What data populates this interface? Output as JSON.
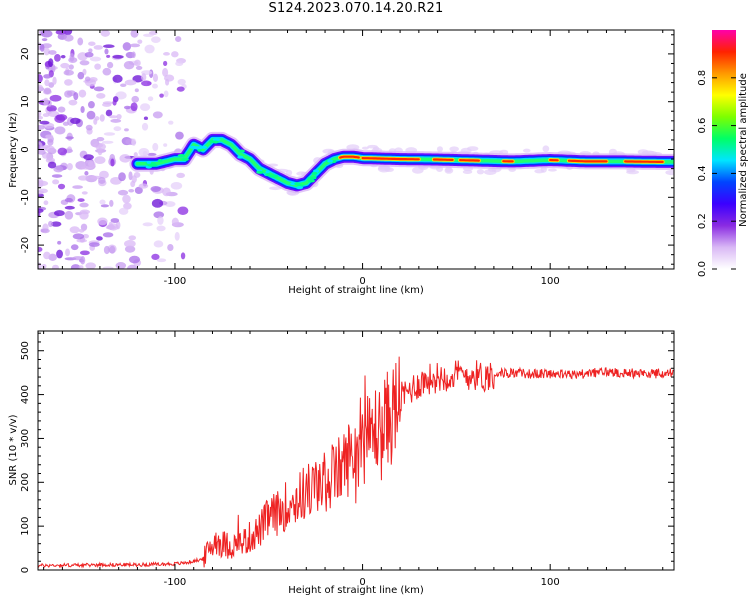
{
  "figure": {
    "title": "S124.2023.070.14.20.R21"
  },
  "chart_data": [
    {
      "type": "heatmap",
      "title": "S124.2023.070.14.20.R21",
      "xlabel": "Height of straight line (km)",
      "ylabel": "Frequency (Hz)",
      "xlim": [
        -173,
        166
      ],
      "ylim": [
        -25,
        25
      ],
      "x_ticks": [
        -100,
        0,
        100
      ],
      "y_ticks": [
        -20,
        -10,
        0,
        10,
        20
      ],
      "colorbar": {
        "label": "Normalized spectral amplitude",
        "range": [
          0,
          1
        ],
        "ticks": [
          0.0,
          0.2,
          0.4,
          0.6,
          0.8
        ],
        "tick_labels": [
          "0.0",
          "0.2",
          "0.4",
          "0.6",
          "0.8"
        ],
        "colormap": [
          "#ffffff",
          "#d9b8f5",
          "#8a2be2",
          "#3b00ff",
          "#0044ff",
          "#00e5ff",
          "#00ff66",
          "#7dff00",
          "#ffff00",
          "#ff9900",
          "#ff2200",
          "#ff00aa"
        ]
      },
      "ridge": {
        "x": [
          -120,
          -110,
          -100,
          -95,
          -90,
          -85,
          -80,
          -75,
          -70,
          -65,
          -60,
          -55,
          -50,
          -45,
          -40,
          -35,
          -30,
          -25,
          -20,
          -15,
          -10,
          -5,
          0,
          20,
          40,
          60,
          80,
          100,
          120,
          140,
          160,
          166
        ],
        "frequency": [
          -3,
          -3,
          -2,
          -2,
          1,
          0,
          2,
          2,
          1,
          -1,
          -2,
          -4,
          -5,
          -6,
          -7,
          -7.5,
          -7,
          -5,
          -3,
          -2,
          -1.5,
          -1.5,
          -1.8,
          -2.0,
          -2.1,
          -2.3,
          -2.5,
          -2.2,
          -2.5,
          -2.5,
          -2.6,
          -2.6
        ]
      }
    },
    {
      "type": "line",
      "xlabel": "Height of straight line (km)",
      "ylabel": "SNR (10 * v/v)",
      "xlim": [
        -173,
        166
      ],
      "ylim": [
        0,
        545
      ],
      "x_ticks": [
        -100,
        0,
        100
      ],
      "y_ticks": [
        0,
        100,
        200,
        300,
        400,
        500
      ],
      "series": [
        {
          "color": "#ee2222",
          "x": [
            -173,
            -160,
            -150,
            -140,
            -130,
            -120,
            -110,
            -100,
            -95,
            -90,
            -85,
            -82,
            -78,
            -75,
            -70,
            -65,
            -60,
            -55,
            -50,
            -45,
            -40,
            -35,
            -30,
            -25,
            -20,
            -15,
            -10,
            -5,
            0,
            5,
            8,
            10,
            12,
            15,
            20,
            25,
            30,
            35,
            40,
            50,
            60,
            65,
            70,
            80,
            90,
            100,
            110,
            120,
            130,
            140,
            150,
            160,
            166
          ],
          "y": [
            10,
            11,
            11,
            12,
            12,
            12,
            13,
            14,
            16,
            20,
            25,
            45,
            70,
            60,
            55,
            60,
            75,
            90,
            120,
            130,
            150,
            160,
            180,
            190,
            200,
            215,
            240,
            270,
            290,
            310,
            330,
            300,
            340,
            350,
            390,
            410,
            425,
            435,
            440,
            445,
            445,
            440,
            448,
            450,
            447,
            448,
            445,
            448,
            452,
            450,
            448,
            448,
            450
          ]
        }
      ]
    }
  ]
}
